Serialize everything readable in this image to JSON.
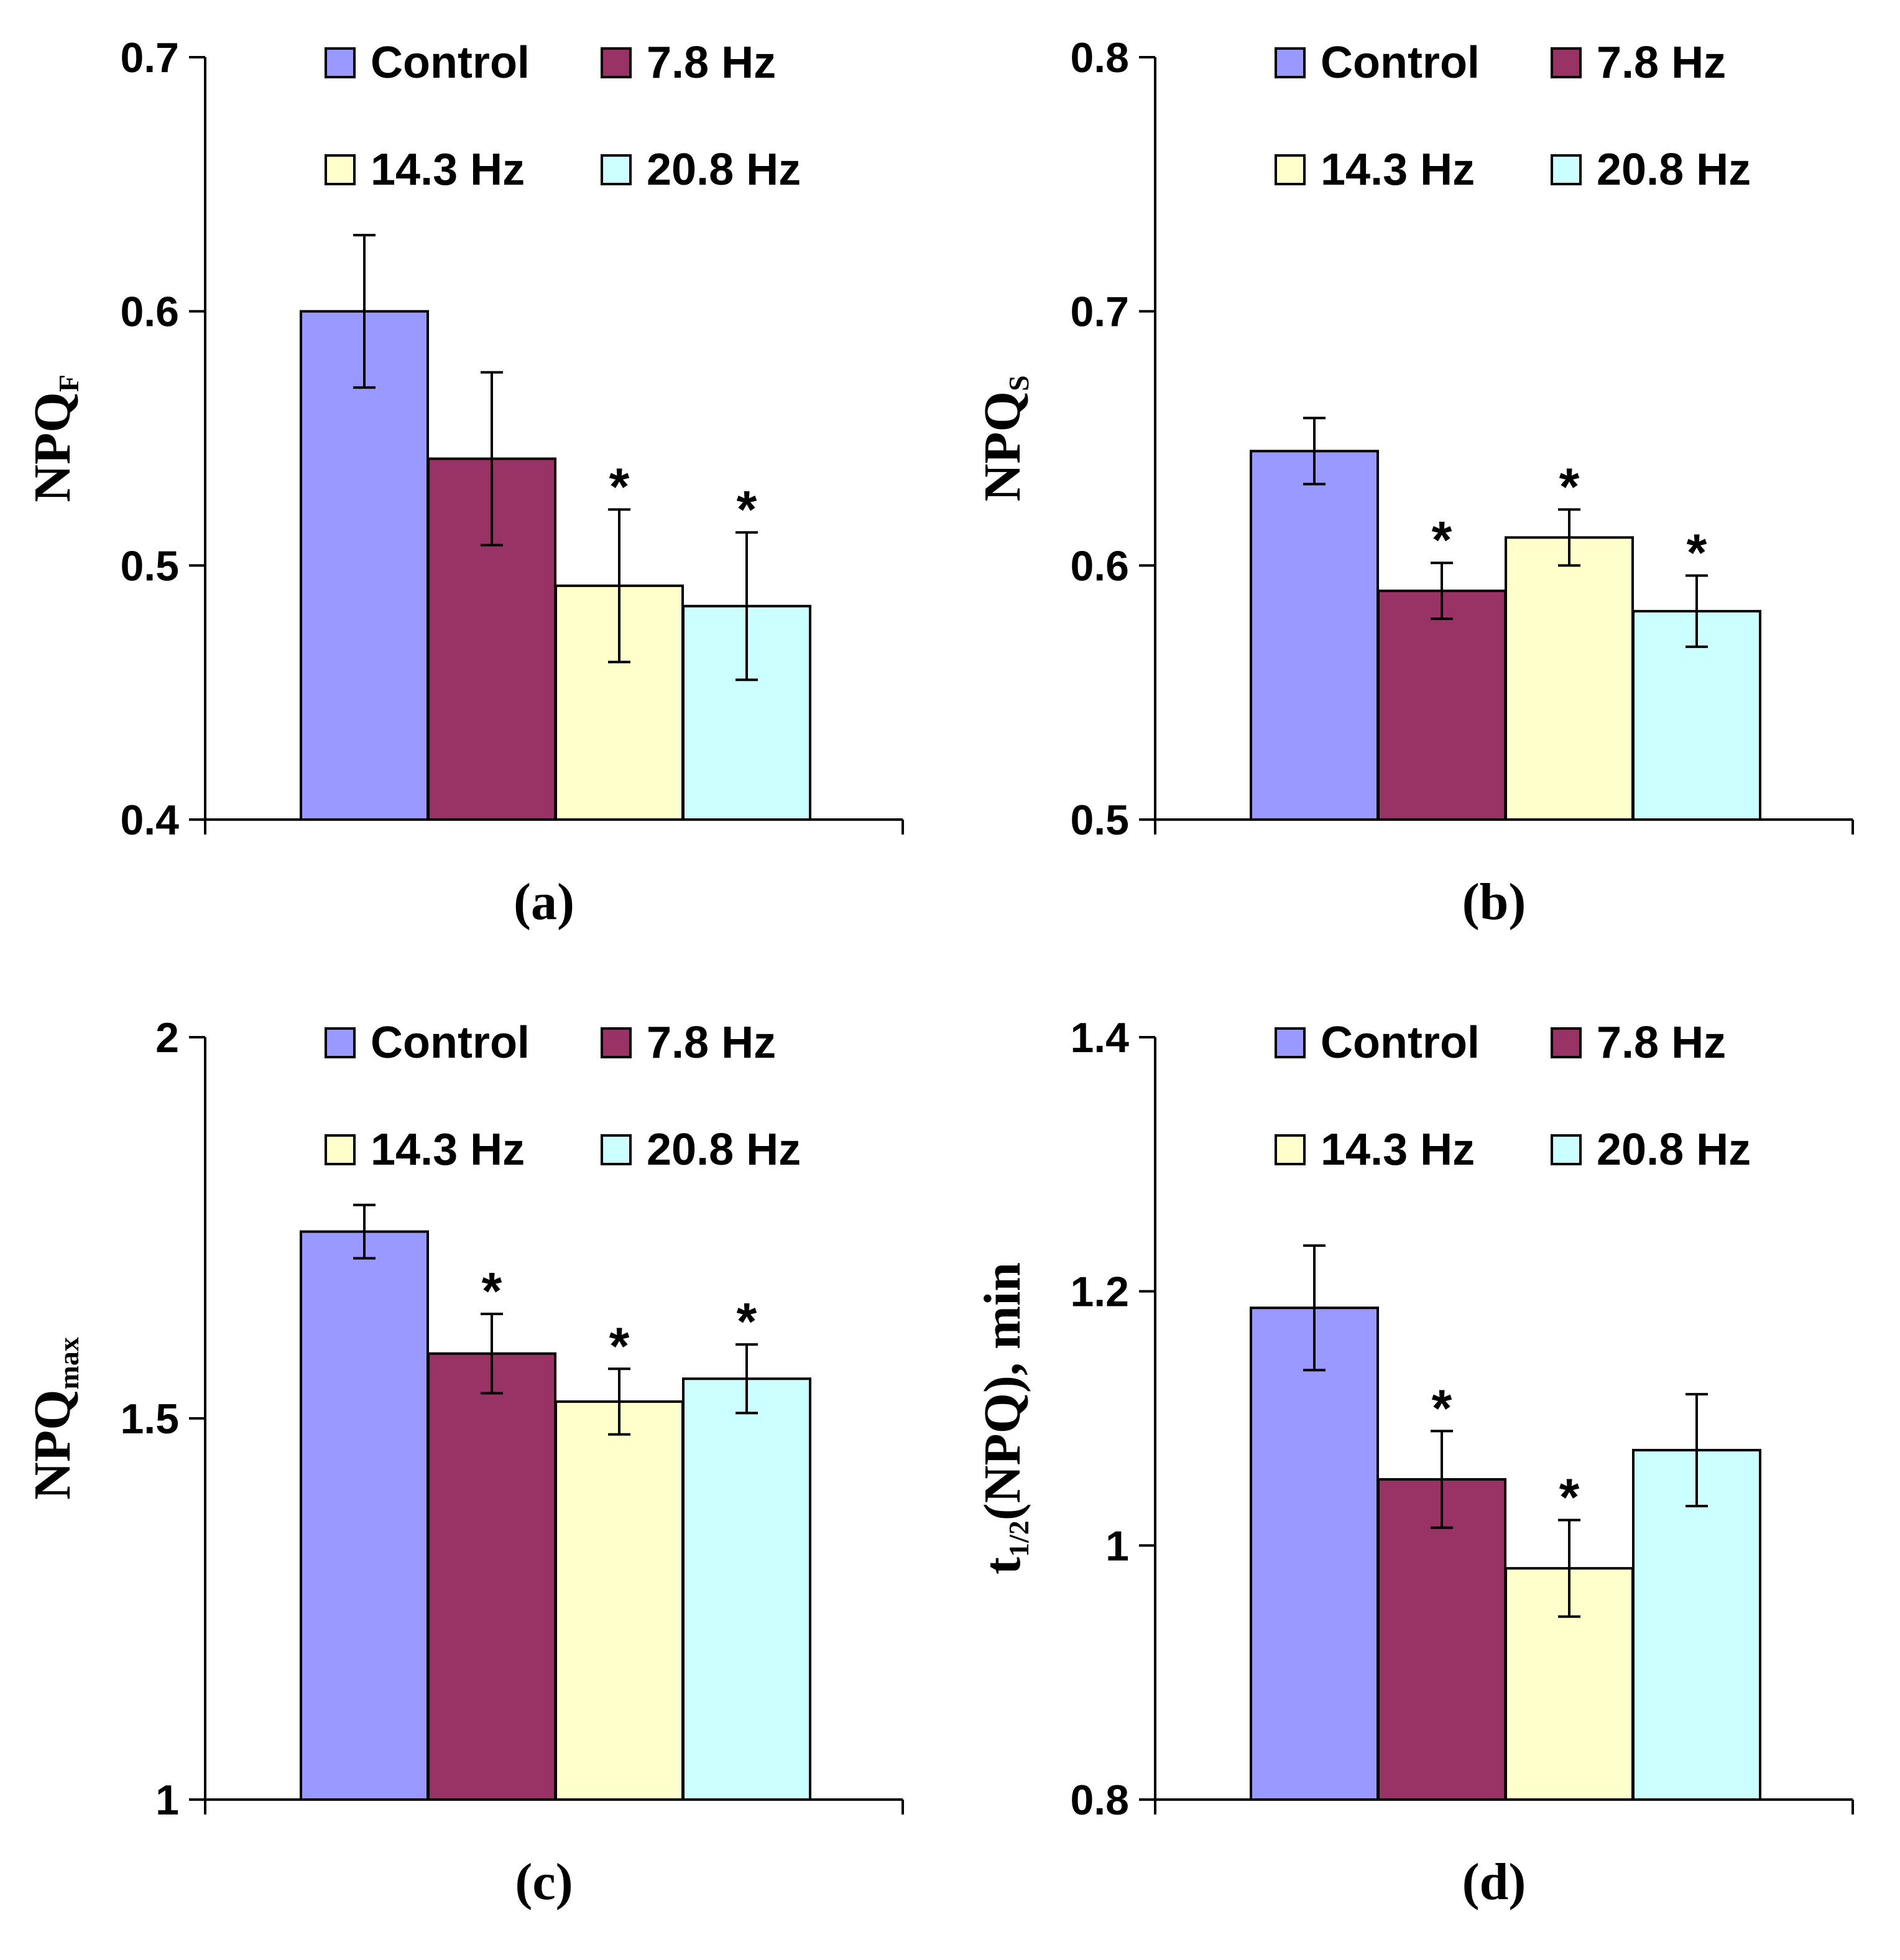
{
  "legend": [
    {
      "name": "Control",
      "color": "#9999ff"
    },
    {
      "name": "7.8 Hz",
      "color": "#993366"
    },
    {
      "name": "14.3 Hz",
      "color": "#ffffcc"
    },
    {
      "name": "20.8 Hz",
      "color": "#ccffff"
    }
  ],
  "chart_data": [
    {
      "type": "bar",
      "panel_label": "(a)",
      "ylabel_main": "NPQ",
      "ylabel_sub": "F",
      "ylabel_rest": "",
      "ylim": [
        0.4,
        0.7
      ],
      "yticks": [
        "0.4",
        "0.5",
        "0.6",
        "0.7"
      ],
      "categories": [
        "Control",
        "7.8 Hz",
        "14.3 Hz",
        "20.8 Hz"
      ],
      "values": [
        0.6,
        0.542,
        0.492,
        0.484
      ],
      "errors": [
        0.03,
        0.034,
        0.03,
        0.029
      ],
      "significant": [
        false,
        false,
        true,
        true
      ],
      "sig_marker": "*"
    },
    {
      "type": "bar",
      "panel_label": "(b)",
      "ylabel_main": "NPQ",
      "ylabel_sub": "S",
      "ylabel_rest": "",
      "ylim": [
        0.5,
        0.8
      ],
      "yticks": [
        "0.5",
        "0.6",
        "0.7",
        "0.8"
      ],
      "categories": [
        "Control",
        "7.8 Hz",
        "14.3 Hz",
        "20.8 Hz"
      ],
      "values": [
        0.645,
        0.59,
        0.611,
        0.582
      ],
      "errors": [
        0.013,
        0.011,
        0.011,
        0.014
      ],
      "significant": [
        false,
        true,
        true,
        true
      ],
      "sig_marker": "*"
    },
    {
      "type": "bar",
      "panel_label": "(c)",
      "ylabel_main": "NPQ",
      "ylabel_sub": "max",
      "ylabel_rest": "",
      "ylim": [
        1,
        2
      ],
      "yticks": [
        "1",
        "1.5",
        "2"
      ],
      "categories": [
        "Control",
        "7.8 Hz",
        "14.3 Hz",
        "20.8 Hz"
      ],
      "values": [
        1.745,
        1.585,
        1.522,
        1.552
      ],
      "errors": [
        0.035,
        0.052,
        0.043,
        0.045
      ],
      "significant": [
        false,
        true,
        true,
        true
      ],
      "sig_marker": "*"
    },
    {
      "type": "bar",
      "panel_label": "(d)",
      "ylabel_main": "t",
      "ylabel_sub": "1/2",
      "ylabel_rest": "(NPQ), min",
      "ylim": [
        0.8,
        1.4
      ],
      "yticks": [
        "0.8",
        "1",
        "1.2",
        "1.4"
      ],
      "categories": [
        "Control",
        "7.8 Hz",
        "14.3 Hz",
        "20.8 Hz"
      ],
      "values": [
        1.187,
        1.052,
        0.982,
        1.075
      ],
      "errors": [
        0.049,
        0.038,
        0.038,
        0.044
      ],
      "significant": [
        false,
        true,
        true,
        false
      ],
      "sig_marker": "*"
    }
  ]
}
